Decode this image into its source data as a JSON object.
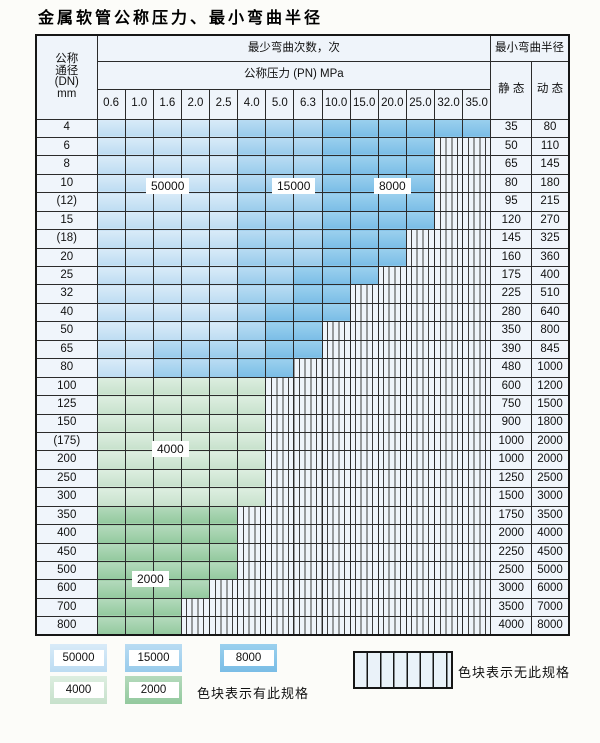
{
  "title": "金属软管公称压力、最小弯曲半径",
  "table": {
    "corner_header": [
      "公称",
      "通径",
      "(DN)",
      "mm"
    ],
    "bend_cycles_header": "最少弯曲次数，次",
    "pressure_header": "公称压力 (PN) MPa",
    "radius_header": "最小弯曲半径",
    "static_header": "静 态",
    "dynamic_header": "动 态",
    "pressure_columns": [
      "0.6",
      "1.0",
      "1.6",
      "2.0",
      "2.5",
      "4.0",
      "5.0",
      "6.3",
      "10.0",
      "15.0",
      "20.0",
      "25.0",
      "32.0",
      "35.0"
    ],
    "rows": [
      {
        "dn": "4",
        "cells": "AAAAABBBCCCCCC",
        "static": "35",
        "dynamic": "80"
      },
      {
        "dn": "6",
        "cells": "AAAAABBBCCCCXX",
        "static": "50",
        "dynamic": "110"
      },
      {
        "dn": "8",
        "cells": "AAAAABBBCCCCXX",
        "static": "65",
        "dynamic": "145"
      },
      {
        "dn": "10",
        "cells": "AAAAABBBCCCCXX",
        "static": "80",
        "dynamic": "180"
      },
      {
        "dn": "(12)",
        "cells": "AAAAABBBCCCCXX",
        "static": "95",
        "dynamic": "215"
      },
      {
        "dn": "15",
        "cells": "AAAAABBBCCCCXX",
        "static": "120",
        "dynamic": "270"
      },
      {
        "dn": "(18)",
        "cells": "AAAAABBBCCCXXX",
        "static": "145",
        "dynamic": "325"
      },
      {
        "dn": "20",
        "cells": "AAAAABBBCCCXXX",
        "static": "160",
        "dynamic": "360"
      },
      {
        "dn": "25",
        "cells": "AAAAABBCCCXXXX",
        "static": "175",
        "dynamic": "400"
      },
      {
        "dn": "32",
        "cells": "AAAAABBCCXXXXX",
        "static": "225",
        "dynamic": "510"
      },
      {
        "dn": "40",
        "cells": "AAAAABCCCXXXXX",
        "static": "280",
        "dynamic": "640"
      },
      {
        "dn": "50",
        "cells": "AAAAABCCXXXXXX",
        "static": "350",
        "dynamic": "800"
      },
      {
        "dn": "65",
        "cells": "AABBBBCCXXXXXX",
        "static": "390",
        "dynamic": "845"
      },
      {
        "dn": "80",
        "cells": "AABBBCCXXXXXXX",
        "static": "480",
        "dynamic": "1000"
      },
      {
        "dn": "100",
        "cells": "GGGGGGXXXXXXXX",
        "static": "600",
        "dynamic": "1200"
      },
      {
        "dn": "125",
        "cells": "GGGGGGXXXXXXXX",
        "static": "750",
        "dynamic": "1500"
      },
      {
        "dn": "150",
        "cells": "GGGGGGXXXXXXXX",
        "static": "900",
        "dynamic": "1800"
      },
      {
        "dn": "(175)",
        "cells": "GGGGGGXXXXXXXX",
        "static": "1000",
        "dynamic": "2000"
      },
      {
        "dn": "200",
        "cells": "GGGGGGXXXXXXXX",
        "static": "1000",
        "dynamic": "2000"
      },
      {
        "dn": "250",
        "cells": "GGGGGGXXXXXXXX",
        "static": "1250",
        "dynamic": "2500"
      },
      {
        "dn": "300",
        "cells": "GGGGGGXXXXXXXX",
        "static": "1500",
        "dynamic": "3000"
      },
      {
        "dn": "350",
        "cells": "HHHHHXXXXXXXXX",
        "static": "1750",
        "dynamic": "3500"
      },
      {
        "dn": "400",
        "cells": "HHHHHXXXXXXXXX",
        "static": "2000",
        "dynamic": "4000"
      },
      {
        "dn": "450",
        "cells": "HHHHHXXXXXXXXX",
        "static": "2250",
        "dynamic": "4500"
      },
      {
        "dn": "500",
        "cells": "HHHHHXXXXXXXXX",
        "static": "2500",
        "dynamic": "5000"
      },
      {
        "dn": "600",
        "cells": "HHHHXXXXXXXXXX",
        "static": "3000",
        "dynamic": "6000"
      },
      {
        "dn": "700",
        "cells": "HHHXXXXXXXXXXX",
        "static": "3500",
        "dynamic": "7000"
      },
      {
        "dn": "800",
        "cells": "HHHXXXXXXXXXXX",
        "static": "4000",
        "dynamic": "8000"
      }
    ]
  },
  "cycle_labels": [
    "50000",
    "15000",
    "8000",
    "4000",
    "2000"
  ],
  "legend": {
    "row1": [
      {
        "value": "50000",
        "type": "A"
      },
      {
        "value": "15000",
        "type": "B"
      },
      {
        "value": "8000",
        "type": "C"
      }
    ],
    "row2": [
      {
        "value": "4000",
        "type": "G"
      },
      {
        "value": "2000",
        "type": "H"
      }
    ],
    "has_spec_text": "色块表示有此规格",
    "no_spec_text": "色块表示无此规格"
  },
  "colors": {
    "c50000": "#cbe3f5",
    "c15000": "#a8d3ef",
    "c8000": "#8ac6ea",
    "c4000": "#d2e7d6",
    "c2000": "#a3d1ac",
    "hatch_bg": "#eef4fa",
    "border": "#161616"
  }
}
